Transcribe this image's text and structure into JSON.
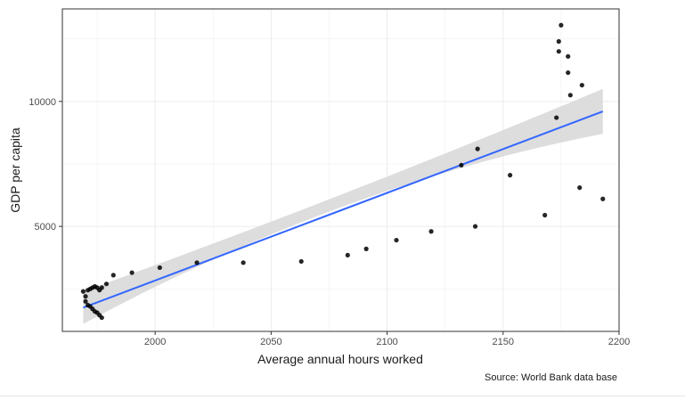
{
  "chart_data": {
    "type": "scatter",
    "title": "",
    "xlabel": "Average annual hours worked",
    "ylabel": "GDP per capita",
    "caption": "Source: World Bank data base",
    "xlim": [
      1960,
      2200
    ],
    "ylim": [
      800,
      13700
    ],
    "x_ticks": [
      2000,
      2050,
      2100,
      2150,
      2200
    ],
    "y_ticks": [
      5000,
      10000
    ],
    "grid": true,
    "legend": "none",
    "colors": {
      "points": "#000000",
      "trend_line": "#3366ff",
      "confidence_band": "#d9d9d9",
      "panel_border": "#333333",
      "grid": "#ebebeb"
    },
    "points": [
      {
        "x": 1969,
        "y": 2400
      },
      {
        "x": 1970,
        "y": 2200
      },
      {
        "x": 1970,
        "y": 2000
      },
      {
        "x": 1971,
        "y": 1850
      },
      {
        "x": 1971,
        "y": 2450
      },
      {
        "x": 1972,
        "y": 1800
      },
      {
        "x": 1972,
        "y": 2500
      },
      {
        "x": 1973,
        "y": 1700
      },
      {
        "x": 1973,
        "y": 2550
      },
      {
        "x": 1974,
        "y": 1600
      },
      {
        "x": 1974,
        "y": 2600
      },
      {
        "x": 1975,
        "y": 1550
      },
      {
        "x": 1975,
        "y": 2550
      },
      {
        "x": 1976,
        "y": 1450
      },
      {
        "x": 1976,
        "y": 2450
      },
      {
        "x": 1977,
        "y": 1350
      },
      {
        "x": 1977,
        "y": 2550
      },
      {
        "x": 1979,
        "y": 2700
      },
      {
        "x": 1982,
        "y": 3050
      },
      {
        "x": 1990,
        "y": 3150
      },
      {
        "x": 2002,
        "y": 3350
      },
      {
        "x": 2018,
        "y": 3550
      },
      {
        "x": 2038,
        "y": 3550
      },
      {
        "x": 2063,
        "y": 3600
      },
      {
        "x": 2083,
        "y": 3850
      },
      {
        "x": 2091,
        "y": 4100
      },
      {
        "x": 2104,
        "y": 4450
      },
      {
        "x": 2119,
        "y": 4800
      },
      {
        "x": 2132,
        "y": 7450
      },
      {
        "x": 2138,
        "y": 5000
      },
      {
        "x": 2139,
        "y": 8100
      },
      {
        "x": 2153,
        "y": 7050
      },
      {
        "x": 2168,
        "y": 5450
      },
      {
        "x": 2173,
        "y": 9350
      },
      {
        "x": 2174,
        "y": 12000
      },
      {
        "x": 2174,
        "y": 12400
      },
      {
        "x": 2175,
        "y": 13050
      },
      {
        "x": 2178,
        "y": 11800
      },
      {
        "x": 2178,
        "y": 11150
      },
      {
        "x": 2179,
        "y": 10250
      },
      {
        "x": 2183,
        "y": 6550
      },
      {
        "x": 2184,
        "y": 10650
      },
      {
        "x": 2193,
        "y": 6100
      }
    ],
    "trend": {
      "x_start": 1969,
      "y_start": 1750,
      "x_end": 2193,
      "y_end": 9600,
      "ci_start": [
        1100,
        2400
      ],
      "ci_mid": [
        5800,
        6300
      ],
      "ci_end": [
        8700,
        10500
      ]
    }
  }
}
